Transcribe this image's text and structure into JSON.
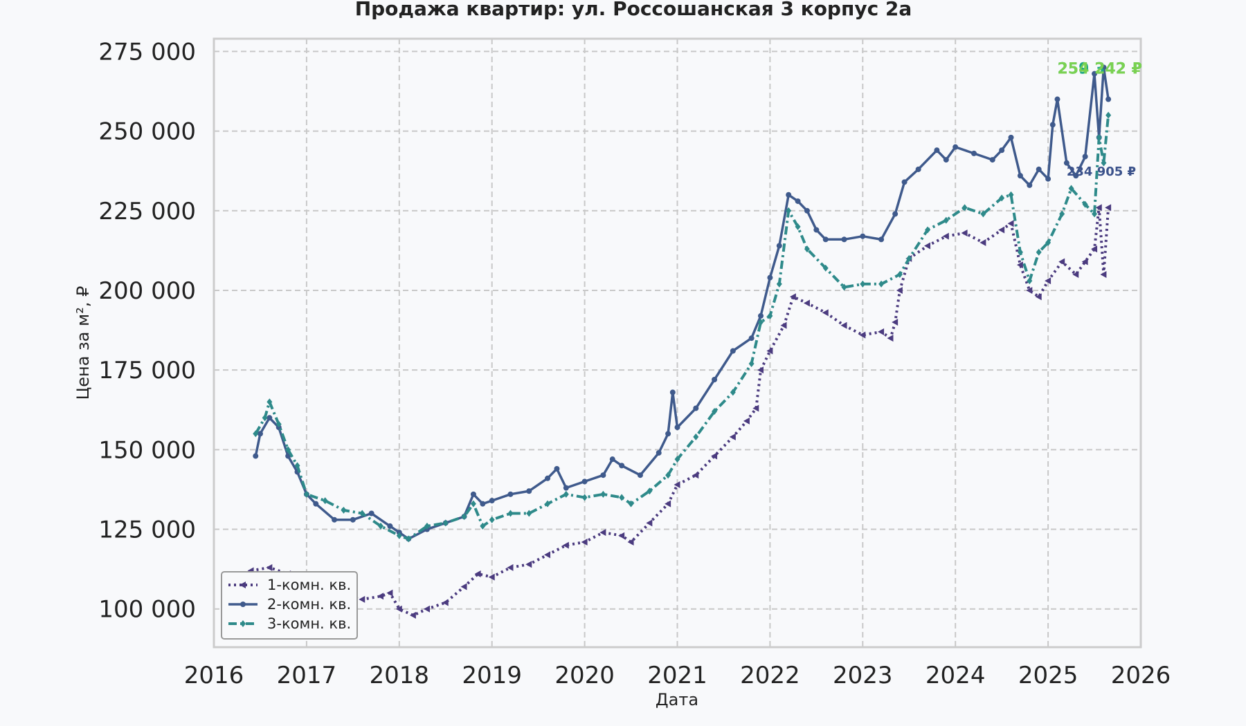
{
  "chart_data": {
    "type": "line",
    "title": "Продажа квартир: ул. Россошанская 3 корпус 2а",
    "xlabel": "Дата",
    "ylabel": "Цена за м², ₽",
    "xlim": [
      2016,
      2026
    ],
    "ylim": [
      88000,
      279000
    ],
    "x_ticks": [
      "2016",
      "2017",
      "2018",
      "2019",
      "2020",
      "2021",
      "2022",
      "2023",
      "2024",
      "2025",
      "2026"
    ],
    "y_ticks": [
      {
        "value": 100000,
        "label": "100 000"
      },
      {
        "value": 125000,
        "label": "125 000"
      },
      {
        "value": 150000,
        "label": "150 000"
      },
      {
        "value": 175000,
        "label": "175 000"
      },
      {
        "value": 200000,
        "label": "200 000"
      },
      {
        "value": 225000,
        "label": "225 000"
      },
      {
        "value": 250000,
        "label": "250 000"
      },
      {
        "value": 275000,
        "label": "275 000"
      }
    ],
    "grid": true,
    "legend_position": "bottom-left",
    "series": [
      {
        "name": "1-комн. кв.",
        "color": "#4b3b7f",
        "line": "dotted",
        "marker": "triangle-left",
        "points": [
          [
            2016.4,
            112000
          ],
          [
            2016.6,
            113000
          ],
          [
            2016.8,
            111000
          ],
          [
            2017.0,
            109000
          ],
          [
            2017.2,
            107000
          ],
          [
            2017.4,
            104000
          ],
          [
            2017.6,
            103000
          ],
          [
            2017.8,
            104000
          ],
          [
            2017.9,
            105000
          ],
          [
            2018.0,
            100000
          ],
          [
            2018.15,
            98000
          ],
          [
            2018.3,
            100000
          ],
          [
            2018.5,
            102000
          ],
          [
            2018.7,
            107000
          ],
          [
            2018.85,
            111000
          ],
          [
            2019.0,
            110000
          ],
          [
            2019.2,
            113000
          ],
          [
            2019.4,
            114000
          ],
          [
            2019.6,
            117000
          ],
          [
            2019.8,
            120000
          ],
          [
            2020.0,
            121000
          ],
          [
            2020.2,
            124000
          ],
          [
            2020.4,
            123000
          ],
          [
            2020.5,
            121000
          ],
          [
            2020.7,
            127000
          ],
          [
            2020.9,
            133000
          ],
          [
            2021.0,
            139000
          ],
          [
            2021.2,
            142000
          ],
          [
            2021.4,
            148000
          ],
          [
            2021.6,
            154000
          ],
          [
            2021.75,
            159000
          ],
          [
            2021.85,
            163000
          ],
          [
            2021.9,
            175000
          ],
          [
            2022.0,
            181000
          ],
          [
            2022.15,
            189000
          ],
          [
            2022.25,
            198000
          ],
          [
            2022.4,
            196000
          ],
          [
            2022.6,
            193000
          ],
          [
            2022.8,
            189000
          ],
          [
            2023.0,
            186000
          ],
          [
            2023.2,
            187000
          ],
          [
            2023.3,
            185000
          ],
          [
            2023.35,
            190000
          ],
          [
            2023.4,
            200000
          ],
          [
            2023.5,
            210000
          ],
          [
            2023.7,
            214000
          ],
          [
            2023.9,
            217000
          ],
          [
            2024.1,
            218000
          ],
          [
            2024.3,
            215000
          ],
          [
            2024.5,
            219000
          ],
          [
            2024.6,
            221000
          ],
          [
            2024.7,
            208000
          ],
          [
            2024.8,
            200000
          ],
          [
            2024.9,
            198000
          ],
          [
            2025.0,
            203000
          ],
          [
            2025.15,
            209000
          ],
          [
            2025.3,
            205000
          ],
          [
            2025.4,
            209000
          ],
          [
            2025.5,
            213000
          ],
          [
            2025.55,
            226000
          ],
          [
            2025.6,
            205000
          ],
          [
            2025.65,
            226000
          ]
        ]
      },
      {
        "name": "2-комн. кв.",
        "color": "#3f5a8c",
        "line": "solid",
        "marker": "circle",
        "points": [
          [
            2016.45,
            148000
          ],
          [
            2016.5,
            155000
          ],
          [
            2016.6,
            160000
          ],
          [
            2016.7,
            157000
          ],
          [
            2016.8,
            148000
          ],
          [
            2016.9,
            143000
          ],
          [
            2017.0,
            136000
          ],
          [
            2017.1,
            133000
          ],
          [
            2017.3,
            128000
          ],
          [
            2017.5,
            128000
          ],
          [
            2017.7,
            130000
          ],
          [
            2017.9,
            126000
          ],
          [
            2018.0,
            124000
          ],
          [
            2018.1,
            122000
          ],
          [
            2018.3,
            125000
          ],
          [
            2018.5,
            127000
          ],
          [
            2018.7,
            129000
          ],
          [
            2018.8,
            136000
          ],
          [
            2018.9,
            133000
          ],
          [
            2019.0,
            134000
          ],
          [
            2019.2,
            136000
          ],
          [
            2019.4,
            137000
          ],
          [
            2019.6,
            141000
          ],
          [
            2019.7,
            144000
          ],
          [
            2019.8,
            138000
          ],
          [
            2020.0,
            140000
          ],
          [
            2020.2,
            142000
          ],
          [
            2020.3,
            147000
          ],
          [
            2020.4,
            145000
          ],
          [
            2020.6,
            142000
          ],
          [
            2020.8,
            149000
          ],
          [
            2020.9,
            155000
          ],
          [
            2020.95,
            168000
          ],
          [
            2021.0,
            157000
          ],
          [
            2021.2,
            163000
          ],
          [
            2021.4,
            172000
          ],
          [
            2021.6,
            181000
          ],
          [
            2021.8,
            185000
          ],
          [
            2021.9,
            192000
          ],
          [
            2022.0,
            204000
          ],
          [
            2022.1,
            214000
          ],
          [
            2022.2,
            230000
          ],
          [
            2022.3,
            228000
          ],
          [
            2022.4,
            225000
          ],
          [
            2022.5,
            219000
          ],
          [
            2022.6,
            216000
          ],
          [
            2022.8,
            216000
          ],
          [
            2023.0,
            217000
          ],
          [
            2023.2,
            216000
          ],
          [
            2023.35,
            224000
          ],
          [
            2023.45,
            234000
          ],
          [
            2023.6,
            238000
          ],
          [
            2023.8,
            244000
          ],
          [
            2023.9,
            241000
          ],
          [
            2024.0,
            245000
          ],
          [
            2024.2,
            243000
          ],
          [
            2024.4,
            241000
          ],
          [
            2024.5,
            244000
          ],
          [
            2024.6,
            248000
          ],
          [
            2024.7,
            236000
          ],
          [
            2024.8,
            233000
          ],
          [
            2024.9,
            238000
          ],
          [
            2025.0,
            235000
          ],
          [
            2025.05,
            252000
          ],
          [
            2025.1,
            260000
          ],
          [
            2025.2,
            240000
          ],
          [
            2025.3,
            236000
          ],
          [
            2025.4,
            242000
          ],
          [
            2025.5,
            268000
          ],
          [
            2025.55,
            248000
          ],
          [
            2025.6,
            270000
          ],
          [
            2025.65,
            260000
          ]
        ]
      },
      {
        "name": "3-комн. кв.",
        "color": "#2e8a8a",
        "line": "dashdot",
        "marker": "diamond",
        "points": [
          [
            2016.45,
            155000
          ],
          [
            2016.55,
            160000
          ],
          [
            2016.6,
            165000
          ],
          [
            2016.7,
            158000
          ],
          [
            2016.8,
            150000
          ],
          [
            2016.9,
            145000
          ],
          [
            2017.0,
            136000
          ],
          [
            2017.2,
            134000
          ],
          [
            2017.4,
            131000
          ],
          [
            2017.6,
            130000
          ],
          [
            2017.8,
            126000
          ],
          [
            2018.0,
            123000
          ],
          [
            2018.1,
            122000
          ],
          [
            2018.3,
            126000
          ],
          [
            2018.5,
            127000
          ],
          [
            2018.7,
            129000
          ],
          [
            2018.8,
            133000
          ],
          [
            2018.9,
            126000
          ],
          [
            2019.0,
            128000
          ],
          [
            2019.2,
            130000
          ],
          [
            2019.4,
            130000
          ],
          [
            2019.6,
            133000
          ],
          [
            2019.8,
            136000
          ],
          [
            2020.0,
            135000
          ],
          [
            2020.2,
            136000
          ],
          [
            2020.4,
            135000
          ],
          [
            2020.5,
            133000
          ],
          [
            2020.7,
            137000
          ],
          [
            2020.9,
            142000
          ],
          [
            2021.0,
            147000
          ],
          [
            2021.2,
            154000
          ],
          [
            2021.4,
            162000
          ],
          [
            2021.6,
            168000
          ],
          [
            2021.8,
            177000
          ],
          [
            2021.9,
            190000
          ],
          [
            2022.0,
            192000
          ],
          [
            2022.1,
            202000
          ],
          [
            2022.2,
            225000
          ],
          [
            2022.3,
            220000
          ],
          [
            2022.4,
            213000
          ],
          [
            2022.6,
            207000
          ],
          [
            2022.8,
            201000
          ],
          [
            2023.0,
            202000
          ],
          [
            2023.2,
            202000
          ],
          [
            2023.4,
            205000
          ],
          [
            2023.5,
            210000
          ],
          [
            2023.7,
            219000
          ],
          [
            2023.9,
            222000
          ],
          [
            2024.1,
            226000
          ],
          [
            2024.3,
            224000
          ],
          [
            2024.5,
            229000
          ],
          [
            2024.6,
            230000
          ],
          [
            2024.7,
            212000
          ],
          [
            2024.8,
            203000
          ],
          [
            2024.9,
            212000
          ],
          [
            2025.0,
            215000
          ],
          [
            2025.15,
            224000
          ],
          [
            2025.25,
            232000
          ],
          [
            2025.4,
            227000
          ],
          [
            2025.5,
            224000
          ],
          [
            2025.55,
            248000
          ],
          [
            2025.6,
            240000
          ],
          [
            2025.65,
            255000
          ]
        ]
      }
    ],
    "annotations": [
      {
        "text": "259 342 ₽",
        "x": 2025.1,
        "y": 268000,
        "color": "#22a884"
      },
      {
        "text": "254 242 ₽",
        "x": 2025.1,
        "y": 268000,
        "color": "#7ad151"
      },
      {
        "text": "234 905 ₽",
        "x": 2025.2,
        "y": 236000,
        "color": "#3b528b"
      }
    ]
  }
}
